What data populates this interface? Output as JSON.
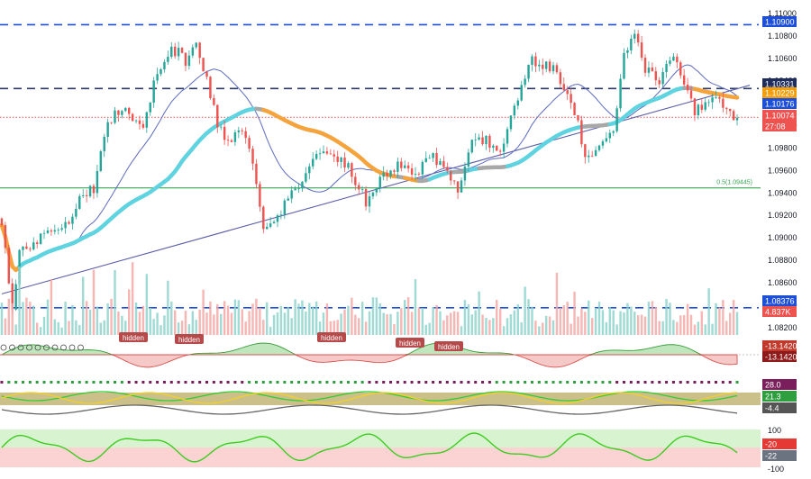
{
  "colors": {
    "up": "#26a69a",
    "down": "#ef5350",
    "level_line": "#1e4fd8",
    "trend_line": "#5b5fa8",
    "ma_thin": "#5c6bc0",
    "ma_cyan": "#5fd3e0",
    "ma_orange": "#f5a33c",
    "ma_gray": "#a8a8a8",
    "fib_line": "#3aa655",
    "tag_blue": "#1e4fd8",
    "tag_orange": "#f59e0b",
    "tag_red": "#ef5350",
    "tag_gray": "#6b7280",
    "tag_green": "#2e7d32",
    "tag_dkgreen": "#1b5e20"
  },
  "chart_data": [
    {
      "type": "candlestick",
      "name": "price",
      "ylim": [
        1.0815,
        1.1112
      ],
      "y_ticks": [
        "1.11000",
        "1.10800",
        "1.10600",
        "1.10400",
        "1.10200",
        "1.10000",
        "1.09800",
        "1.09600",
        "1.09400",
        "1.09200",
        "1.09000",
        "1.08800",
        "1.08600",
        "1.08400",
        "1.08200"
      ],
      "anchors": [
        [
          0,
          1.0915
        ],
        [
          3,
          1.0835
        ],
        [
          5,
          1.0885
        ],
        [
          12,
          1.0905
        ],
        [
          18,
          1.0912
        ],
        [
          22,
          1.0935
        ],
        [
          26,
          1.0945
        ],
        [
          30,
          1.1005
        ],
        [
          35,
          1.1015
        ],
        [
          40,
          1.0995
        ],
        [
          44,
          1.105
        ],
        [
          48,
          1.107
        ],
        [
          52,
          1.1058
        ],
        [
          55,
          1.1072
        ],
        [
          58,
          1.104
        ],
        [
          61,
          1.1002
        ],
        [
          64,
          1.0985
        ],
        [
          68,
          1.0998
        ],
        [
          71,
          1.0962
        ],
        [
          74,
          1.0912
        ],
        [
          78,
          1.0922
        ],
        [
          82,
          1.0938
        ],
        [
          86,
          1.0958
        ],
        [
          89,
          1.0972
        ],
        [
          93,
          1.0975
        ],
        [
          97,
          1.0968
        ],
        [
          100,
          1.0952
        ],
        [
          103,
          1.0932
        ],
        [
          107,
          1.0955
        ],
        [
          112,
          1.0965
        ],
        [
          117,
          1.0958
        ],
        [
          121,
          1.0972
        ],
        [
          125,
          1.0968
        ],
        [
          129,
          1.0942
        ],
        [
          133,
          1.0982
        ],
        [
          137,
          1.0988
        ],
        [
          141,
          1.0978
        ],
        [
          146,
          1.1025
        ],
        [
          150,
          1.1058
        ],
        [
          154,
          1.1052
        ],
        [
          157,
          1.1048
        ],
        [
          161,
          1.1025
        ],
        [
          165,
          1.0975
        ],
        [
          169,
          1.0978
        ],
        [
          173,
          1.0995
        ],
        [
          176,
          1.106
        ],
        [
          179,
          1.1082
        ],
        [
          182,
          1.1048
        ],
        [
          186,
          1.1042
        ],
        [
          190,
          1.106
        ],
        [
          193,
          1.1038
        ],
        [
          196,
          1.101
        ],
        [
          199,
          1.102
        ],
        [
          202,
          1.103
        ],
        [
          205,
          1.1015
        ],
        [
          208,
          1.1007
        ]
      ],
      "levels": [
        {
          "label": "1.10900",
          "value": 1.109,
          "style": "dashed",
          "tag": "blue"
        },
        {
          "label": "1.10331",
          "value": 1.10331,
          "style": "dashed",
          "tag": "dkgray"
        },
        {
          "label": "1.10229",
          "value": 1.10229,
          "style": "none",
          "tag": "orange"
        },
        {
          "label": "1.10176",
          "value": 1.10176,
          "style": "none",
          "tag": "blue"
        },
        {
          "label": "1.10074",
          "value": 1.10074,
          "style": "dotted",
          "tag": "red"
        },
        {
          "label": "1.08376",
          "value": 1.08376,
          "style": "dashed",
          "tag": "blue"
        }
      ],
      "countdown": "27:08",
      "fib": {
        "label": "0.5(1.09445)",
        "value": 1.09445
      },
      "trend_line": [
        [
          0,
          1.085
        ],
        [
          208,
          1.1032
        ]
      ]
    },
    {
      "type": "bar",
      "name": "volume",
      "current_label": "4.837K"
    },
    {
      "type": "area",
      "name": "divergence oscillator",
      "value_labels": [
        "-13.14204",
        "-13.14204"
      ],
      "annotations": [
        "hidden",
        "hidden",
        "hidden",
        "hidden",
        "hidden"
      ]
    },
    {
      "type": "line",
      "name": "ADX / DMI",
      "value_labels": [
        "28.0",
        "21.3",
        "-4.4"
      ]
    },
    {
      "type": "line",
      "name": "Williams %R",
      "y_ticks": [
        "100",
        "-100"
      ],
      "value_labels": [
        "-20",
        "-22"
      ]
    }
  ]
}
